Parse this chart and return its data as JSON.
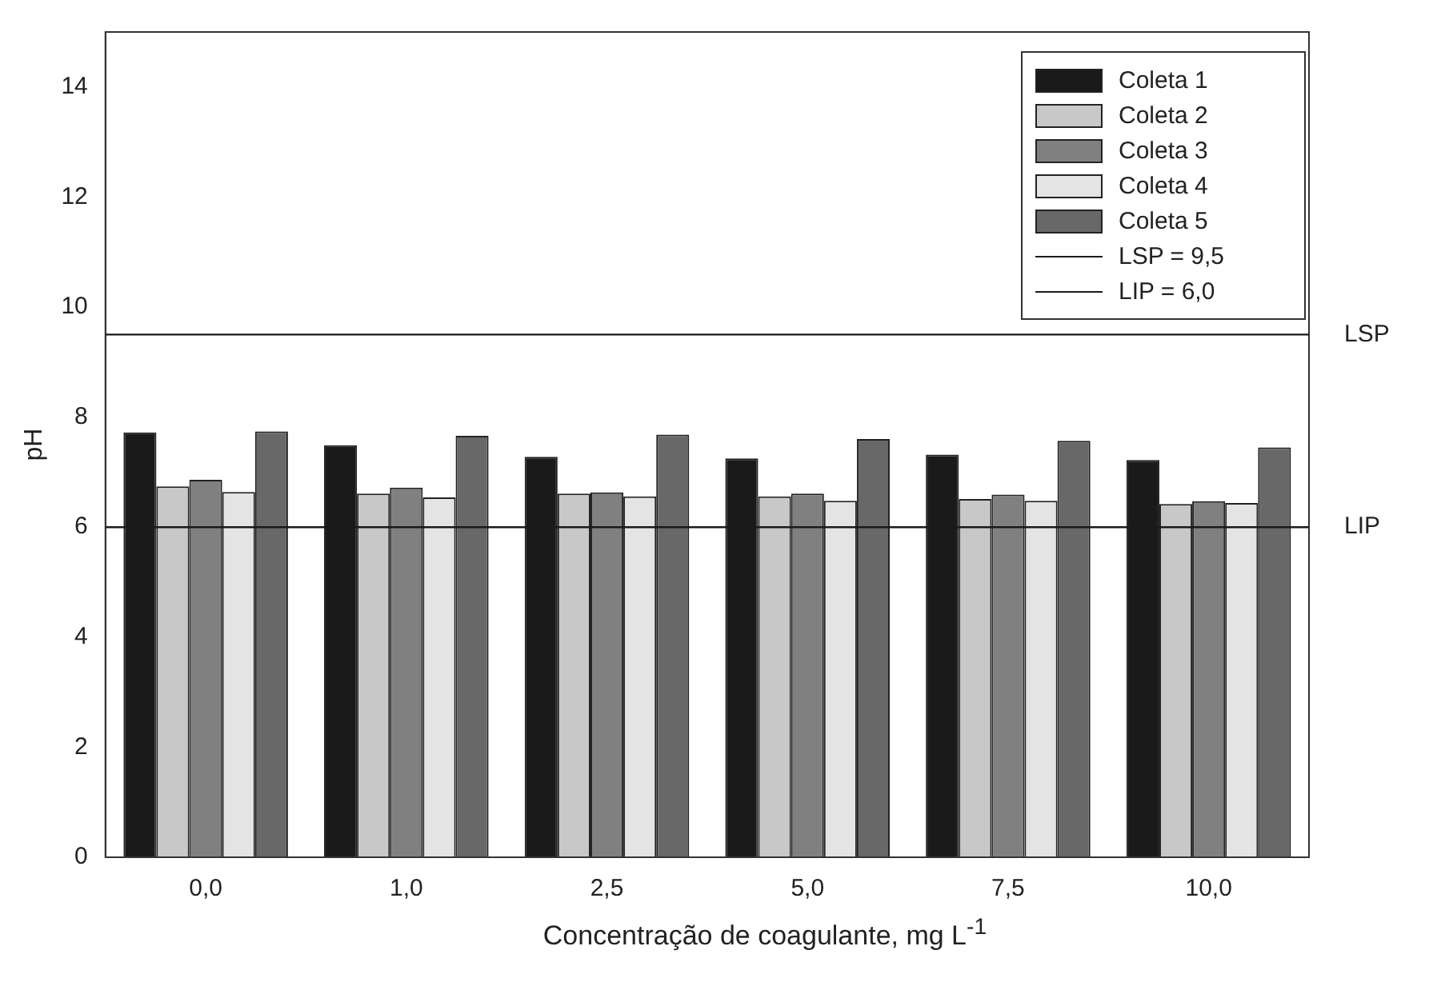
{
  "chart_data": {
    "type": "bar",
    "xlabel": "Concentração de coagulante, mg L$^{-1}$",
    "ylabel": "pH",
    "categories": [
      "0,0",
      "1,0",
      "2,5",
      "5,0",
      "7,5",
      "10,0"
    ],
    "series": [
      {
        "name": "Coleta 1",
        "color": "#1a1a1a",
        "values": [
          7.72,
          7.49,
          7.28,
          7.25,
          7.32,
          7.22
        ]
      },
      {
        "name": "Coleta 2",
        "color": "#c8c8c8",
        "values": [
          6.74,
          6.61,
          6.61,
          6.56,
          6.51,
          6.42
        ]
      },
      {
        "name": "Coleta 3",
        "color": "#808080",
        "values": [
          6.86,
          6.72,
          6.63,
          6.61,
          6.59,
          6.47
        ]
      },
      {
        "name": "Coleta 4",
        "color": "#e4e4e4",
        "values": [
          6.64,
          6.54,
          6.56,
          6.48,
          6.48,
          6.44
        ]
      },
      {
        "name": "Coleta 5",
        "color": "#686868",
        "values": [
          7.74,
          7.66,
          7.68,
          7.6,
          7.57,
          7.45
        ]
      }
    ],
    "ylim": [
      0,
      15
    ],
    "yticks": [
      0,
      2,
      4,
      6,
      8,
      10,
      12,
      14
    ],
    "grid": false,
    "legend": "top right",
    "ref_lines": [
      {
        "axis": "y",
        "value": 9.5,
        "label": "LSP",
        "color": "#1a1a1a"
      },
      {
        "axis": "y",
        "value": 6,
        "label": "LIP",
        "color": "#1a1a1a"
      }
    ],
    "annotations": [
      "LSP = 9,5",
      "LIP = 6,0"
    ]
  }
}
